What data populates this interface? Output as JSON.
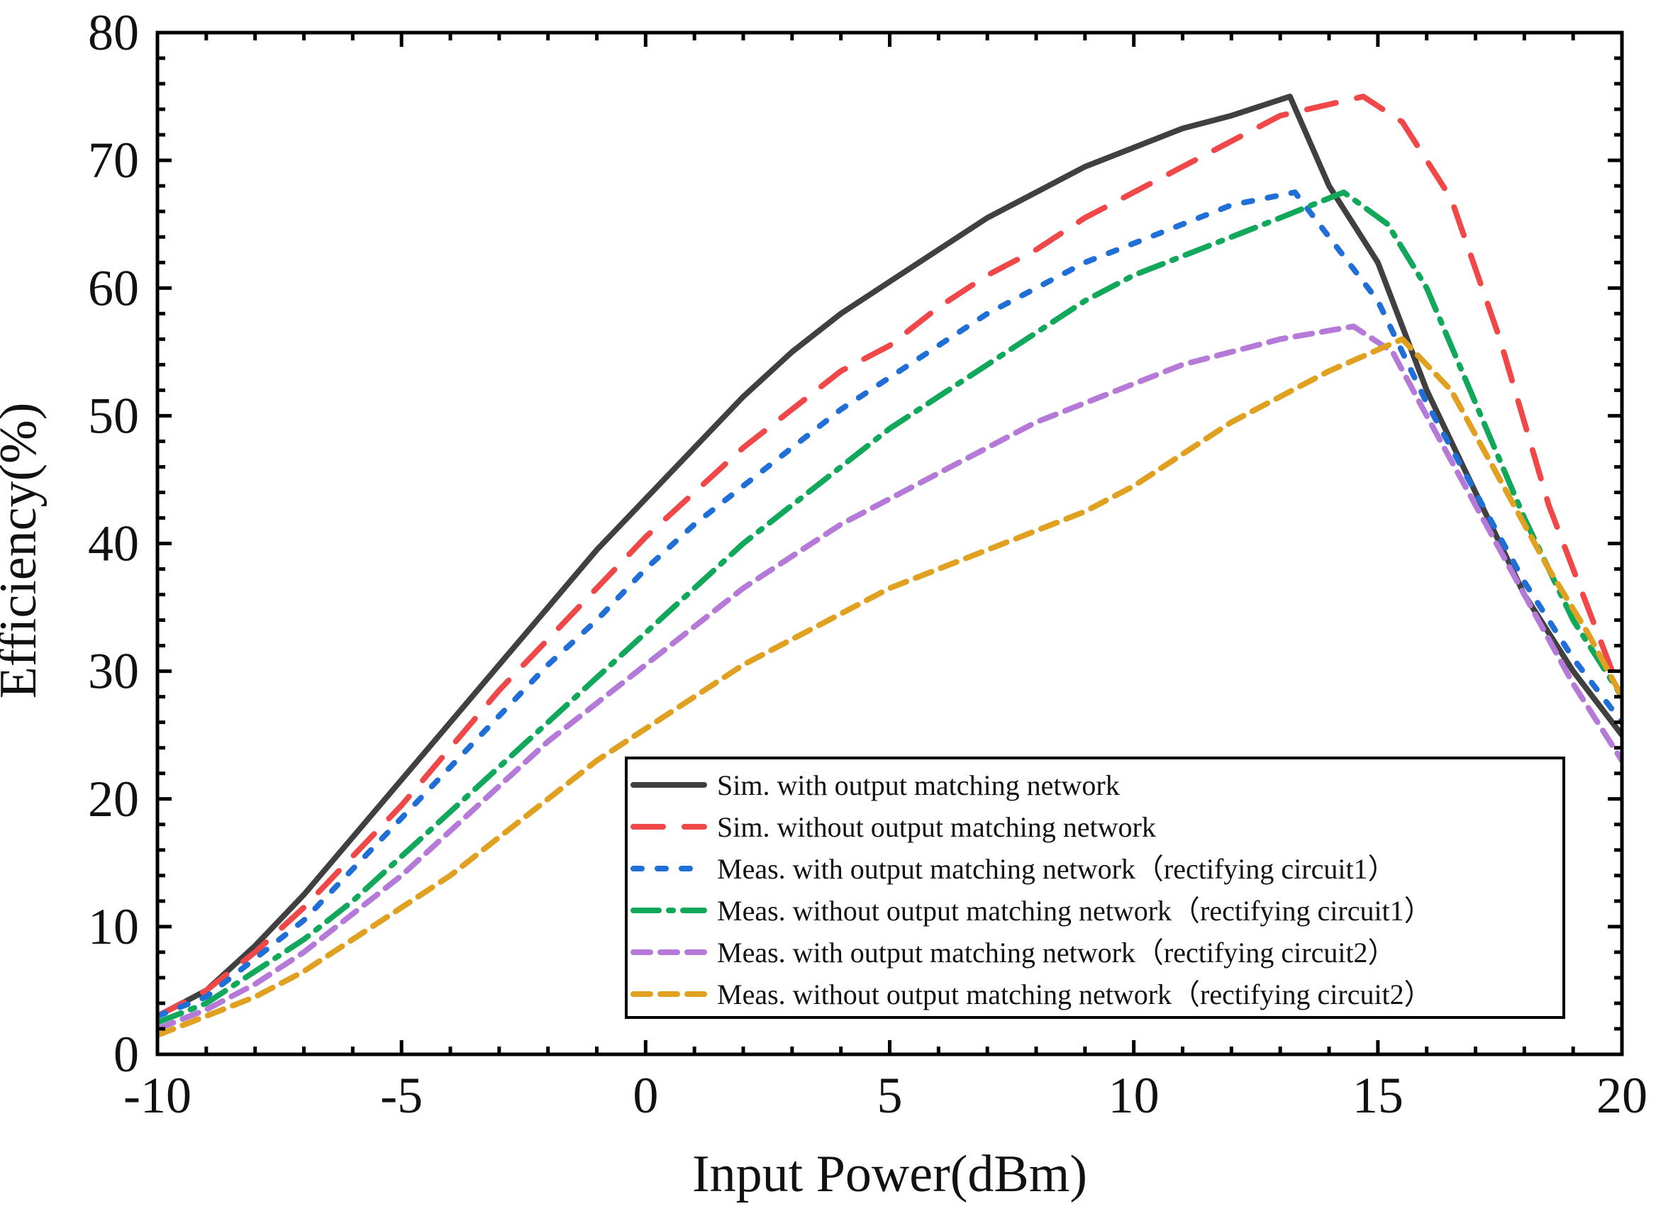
{
  "chart_data": {
    "type": "line",
    "title": "",
    "xlabel": "Input Power(dBm)",
    "ylabel": "Efficiency(%)",
    "xlim": [
      -10,
      20
    ],
    "ylim": [
      0,
      80
    ],
    "x_ticks": [
      -10,
      -5,
      0,
      5,
      10,
      15,
      20
    ],
    "x_tick_labels": [
      "-10",
      "-5",
      "0",
      "5",
      "10",
      "15",
      "20"
    ],
    "y_ticks": [
      0,
      10,
      20,
      30,
      40,
      50,
      60,
      70,
      80
    ],
    "y_tick_labels": [
      "0",
      "10",
      "20",
      "30",
      "40",
      "50",
      "60",
      "70",
      "80"
    ],
    "grid": false,
    "legend_position": "bottom-right",
    "series": [
      {
        "name": "Sim. with output matching network",
        "color": "#404040",
        "dash": "solid",
        "points": [
          [
            -10,
            3
          ],
          [
            -9,
            5
          ],
          [
            -8,
            8.5
          ],
          [
            -7,
            12.5
          ],
          [
            -6,
            17
          ],
          [
            -5,
            21.5
          ],
          [
            -4,
            26
          ],
          [
            -3,
            30.5
          ],
          [
            -2,
            35
          ],
          [
            -1,
            39.5
          ],
          [
            0,
            43.5
          ],
          [
            1,
            47.5
          ],
          [
            2,
            51.5
          ],
          [
            3,
            55
          ],
          [
            4,
            58
          ],
          [
            5,
            60.5
          ],
          [
            6,
            63
          ],
          [
            7,
            65.5
          ],
          [
            8,
            67.5
          ],
          [
            9,
            69.5
          ],
          [
            10,
            71
          ],
          [
            11,
            72.5
          ],
          [
            12,
            73.5
          ],
          [
            13.2,
            75
          ],
          [
            14,
            68
          ],
          [
            15,
            62
          ],
          [
            16,
            52
          ],
          [
            17,
            44
          ],
          [
            18,
            36
          ],
          [
            19,
            30
          ],
          [
            20,
            25
          ]
        ]
      },
      {
        "name": "Sim. without output matching network",
        "color": "#f04848",
        "dash": "long",
        "points": [
          [
            -10,
            3
          ],
          [
            -9,
            5
          ],
          [
            -8,
            8
          ],
          [
            -7,
            11.5
          ],
          [
            -6,
            15.5
          ],
          [
            -5,
            19.5
          ],
          [
            -4,
            24
          ],
          [
            -3,
            28.5
          ],
          [
            -2,
            32.5
          ],
          [
            -1,
            36.5
          ],
          [
            0,
            40.5
          ],
          [
            1,
            44
          ],
          [
            2,
            47.5
          ],
          [
            3,
            50.5
          ],
          [
            4,
            53.5
          ],
          [
            5,
            55.5
          ],
          [
            6,
            58.5
          ],
          [
            7,
            61
          ],
          [
            8,
            63
          ],
          [
            9,
            65.5
          ],
          [
            10,
            67.5
          ],
          [
            11,
            69.5
          ],
          [
            12,
            71.5
          ],
          [
            13,
            73.5
          ],
          [
            14.7,
            75
          ],
          [
            15.5,
            73
          ],
          [
            16.5,
            67
          ],
          [
            17.5,
            56
          ],
          [
            18.5,
            43
          ],
          [
            19.3,
            35
          ],
          [
            20,
            28
          ]
        ]
      },
      {
        "name": "Meas. with output matching network（rectifying circuit1）",
        "color": "#1f6fd6",
        "dash": "dot",
        "points": [
          [
            -10,
            3
          ],
          [
            -9,
            4.5
          ],
          [
            -8,
            7.5
          ],
          [
            -7,
            10.5
          ],
          [
            -6,
            14.5
          ],
          [
            -5,
            18.5
          ],
          [
            -4,
            22.5
          ],
          [
            -3,
            26.5
          ],
          [
            -2,
            30.5
          ],
          [
            -1,
            34
          ],
          [
            0,
            38
          ],
          [
            1,
            41.5
          ],
          [
            2,
            44.5
          ],
          [
            3,
            47.5
          ],
          [
            4,
            50.5
          ],
          [
            5,
            53
          ],
          [
            6,
            55.5
          ],
          [
            7,
            58
          ],
          [
            8,
            60
          ],
          [
            9,
            62
          ],
          [
            10,
            63.5
          ],
          [
            11,
            65
          ],
          [
            12,
            66.5
          ],
          [
            13.3,
            67.5
          ],
          [
            14,
            64
          ],
          [
            15,
            59
          ],
          [
            16,
            51
          ],
          [
            17,
            44
          ],
          [
            18,
            37
          ],
          [
            19,
            31
          ],
          [
            20,
            26
          ]
        ]
      },
      {
        "name": "Meas. without output matching network（rectifying circuit1）",
        "color": "#12a85c",
        "dash": "dashdot",
        "points": [
          [
            -10,
            2.5
          ],
          [
            -9,
            4
          ],
          [
            -8,
            6.5
          ],
          [
            -7,
            9
          ],
          [
            -6,
            12
          ],
          [
            -5,
            15.5
          ],
          [
            -4,
            19
          ],
          [
            -3,
            22.5
          ],
          [
            -2,
            26
          ],
          [
            -1,
            29.5
          ],
          [
            0,
            33
          ],
          [
            1,
            36.5
          ],
          [
            2,
            40
          ],
          [
            3,
            43
          ],
          [
            4,
            46
          ],
          [
            5,
            49
          ],
          [
            6,
            51.5
          ],
          [
            7,
            54
          ],
          [
            8,
            56.5
          ],
          [
            9,
            59
          ],
          [
            10,
            61
          ],
          [
            11,
            62.5
          ],
          [
            12,
            64
          ],
          [
            13,
            65.5
          ],
          [
            14.3,
            67.5
          ],
          [
            15.2,
            65
          ],
          [
            16,
            60
          ],
          [
            17,
            51
          ],
          [
            18,
            42
          ],
          [
            19,
            34
          ],
          [
            20,
            28
          ]
        ]
      },
      {
        "name": "Meas. with output matching network（rectifying circuit2）",
        "color": "#b57ad8",
        "dash": "dash",
        "points": [
          [
            -10,
            2
          ],
          [
            -9,
            3.5
          ],
          [
            -8,
            5.5
          ],
          [
            -7,
            8
          ],
          [
            -6,
            11
          ],
          [
            -5,
            14
          ],
          [
            -4,
            17.5
          ],
          [
            -3,
            21
          ],
          [
            -2,
            24.5
          ],
          [
            -1,
            27.5
          ],
          [
            0,
            30.5
          ],
          [
            1,
            33.5
          ],
          [
            2,
            36.5
          ],
          [
            3,
            39
          ],
          [
            4,
            41.5
          ],
          [
            5,
            43.5
          ],
          [
            6,
            45.5
          ],
          [
            7,
            47.5
          ],
          [
            8,
            49.5
          ],
          [
            9,
            51
          ],
          [
            10,
            52.5
          ],
          [
            11,
            54
          ],
          [
            12,
            55
          ],
          [
            13,
            56
          ],
          [
            14.5,
            57
          ],
          [
            15.3,
            55
          ],
          [
            16,
            50
          ],
          [
            17,
            43
          ],
          [
            18,
            36
          ],
          [
            19,
            29
          ],
          [
            20,
            23
          ]
        ]
      },
      {
        "name": "Meas. without output matching network（rectifying circuit2）",
        "color": "#e0a020",
        "dash": "dash",
        "points": [
          [
            -10,
            1.5
          ],
          [
            -9,
            3
          ],
          [
            -8,
            4.5
          ],
          [
            -7,
            6.5
          ],
          [
            -6,
            9
          ],
          [
            -5,
            11.5
          ],
          [
            -4,
            14
          ],
          [
            -3,
            17
          ],
          [
            -2,
            20
          ],
          [
            -1,
            23
          ],
          [
            0,
            25.5
          ],
          [
            1,
            28
          ],
          [
            2,
            30.5
          ],
          [
            3,
            32.5
          ],
          [
            4,
            34.5
          ],
          [
            5,
            36.5
          ],
          [
            6,
            38
          ],
          [
            7,
            39.5
          ],
          [
            8,
            41
          ],
          [
            9,
            42.5
          ],
          [
            10,
            44.5
          ],
          [
            11,
            47
          ],
          [
            12,
            49.5
          ],
          [
            13,
            51.5
          ],
          [
            14,
            53.5
          ],
          [
            15.5,
            56
          ],
          [
            16.5,
            52
          ],
          [
            17.5,
            45
          ],
          [
            18.5,
            38
          ],
          [
            19.3,
            33
          ],
          [
            20,
            28
          ]
        ]
      }
    ]
  }
}
